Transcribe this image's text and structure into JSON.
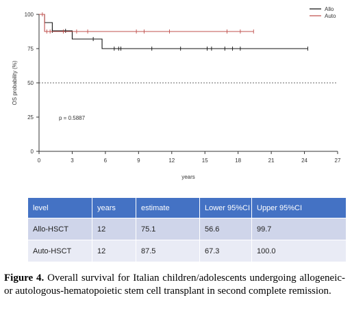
{
  "chart_data": {
    "type": "line",
    "xlabel": "years",
    "ylabel": "OS probability (%)",
    "xlim": [
      0,
      27
    ],
    "ylim": [
      0,
      100
    ],
    "x_ticks": [
      0,
      3,
      6,
      9,
      12,
      15,
      18,
      21,
      24,
      27
    ],
    "y_ticks": [
      0,
      25,
      50,
      75,
      100
    ],
    "reference_line": {
      "y": 50,
      "style": "dashed"
    },
    "annotation": "p = 0.5887",
    "legend_position": "top-right",
    "series": [
      {
        "name": "Allo",
        "color": "#111111",
        "steps": [
          [
            0,
            100
          ],
          [
            0.5,
            94
          ],
          [
            1.2,
            88
          ],
          [
            3,
            82
          ],
          [
            5.7,
            75
          ],
          [
            24.3,
            75
          ]
        ],
        "censor_x": [
          1.2,
          2.4,
          4.9,
          6.8,
          7.2,
          7.4,
          10.2,
          12.8,
          15.2,
          15.6,
          16.8,
          17.5,
          18.2,
          24.3
        ]
      },
      {
        "name": "Auto",
        "color": "#c0504d",
        "steps": [
          [
            0,
            100
          ],
          [
            0.5,
            87.5
          ],
          [
            19.4,
            87.5
          ]
        ],
        "censor_x": [
          0.3,
          0.7,
          1.0,
          2.2,
          3.4,
          4.4,
          8.8,
          9.5,
          11.8,
          17.0,
          18.2,
          19.4
        ]
      }
    ]
  },
  "table": {
    "headers": [
      "level",
      "years",
      "estimate",
      "Lower 95%CI",
      "Upper 95%CI"
    ],
    "rows": [
      [
        "Allo-HSCT",
        "12",
        "75.1",
        "56.6",
        "99.7"
      ],
      [
        "Auto-HSCT",
        "12",
        "87.5",
        "67.3",
        "100.0"
      ]
    ]
  },
  "caption": {
    "label": "Figure 4.",
    "text": "Overall survival for Italian children/adolescents undergoing allogeneic- or autologous-hematopoietic stem cell transplant in second complete remission."
  }
}
